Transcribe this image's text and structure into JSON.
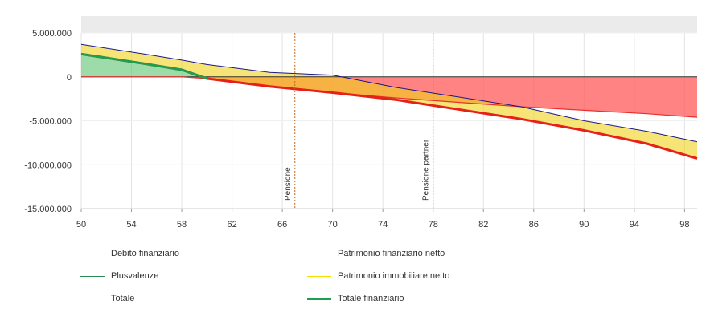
{
  "chart_data": {
    "type": "area",
    "title": "",
    "xlabel": "",
    "ylabel": "",
    "xlim": [
      50,
      99
    ],
    "ylim": [
      -15000000,
      5000000
    ],
    "x_ticks": [
      50,
      54,
      58,
      62,
      66,
      70,
      74,
      78,
      82,
      86,
      90,
      94,
      98
    ],
    "x_tick_labels": [
      "50",
      "54",
      "58",
      "62",
      "66",
      "70",
      "74",
      "78",
      "82",
      "86",
      "90",
      "94",
      "98"
    ],
    "y_ticks": [
      5000000,
      0,
      -5000000,
      -10000000,
      -15000000
    ],
    "y_tick_labels": [
      "5.000.000",
      "0",
      "-5.000.000",
      "-10.000.000",
      "-15.000.000"
    ],
    "grid": true,
    "legend_position": "bottom",
    "x": [
      50,
      55,
      58,
      60,
      65,
      70,
      75,
      80,
      85,
      90,
      95,
      99
    ],
    "series": [
      {
        "name": "Debito finanziario",
        "color": "#8b1a1a",
        "values": [
          0,
          0,
          0,
          0,
          0,
          0,
          0,
          0,
          0,
          0,
          0,
          0
        ]
      },
      {
        "name": "Patrimonio finanziario netto",
        "color": "#4caf50",
        "values": [
          0,
          0,
          0,
          -200000,
          -1100000,
          -1800000,
          -2400000,
          -2900000,
          -3400000,
          -3800000,
          -4200000,
          -4600000
        ]
      },
      {
        "name": "Plusvalenze",
        "color": "#2e8b57",
        "values": [
          2600000,
          1500000,
          800000,
          0,
          0,
          0,
          0,
          0,
          0,
          0,
          0,
          0
        ]
      },
      {
        "name": "Patrimonio immobiliare netto",
        "color": "#f2e200",
        "values": [
          1100000,
          1100000,
          1100000,
          1400000,
          1100000,
          0,
          -200000,
          -800000,
          -1400000,
          -2100000,
          -2900000,
          -3600000
        ]
      },
      {
        "name": "Totale",
        "color": "#1a1a8c",
        "values": [
          3700000,
          2600000,
          1900000,
          1400000,
          500000,
          200000,
          -1200000,
          -2300000,
          -3400000,
          -5000000,
          -6200000,
          -7400000
        ]
      },
      {
        "name": "Totale finanziario",
        "color": "#1f9e4f",
        "values": [
          2600000,
          1500000,
          800000,
          -200000,
          -1100000,
          -1800000,
          -2600000,
          -3700000,
          -4800000,
          -6100000,
          -7600000,
          -9300000
        ]
      }
    ],
    "annotations": [
      {
        "x": 67,
        "label": "Pensione"
      },
      {
        "x": 78,
        "label": "Pensione partner"
      }
    ]
  },
  "legend": [
    {
      "name": "Debito finanziario",
      "color": "#8b1a1a"
    },
    {
      "name": "Patrimonio finanziario netto",
      "color": "#4caf50"
    },
    {
      "name": "Plusvalenze",
      "color": "#2e8b57"
    },
    {
      "name": "Patrimonio immobiliare netto",
      "color": "#f2e200"
    },
    {
      "name": "Totale",
      "color": "#1a1a8c"
    },
    {
      "name": "Totale finanziario",
      "color": "#1f9e4f"
    }
  ]
}
